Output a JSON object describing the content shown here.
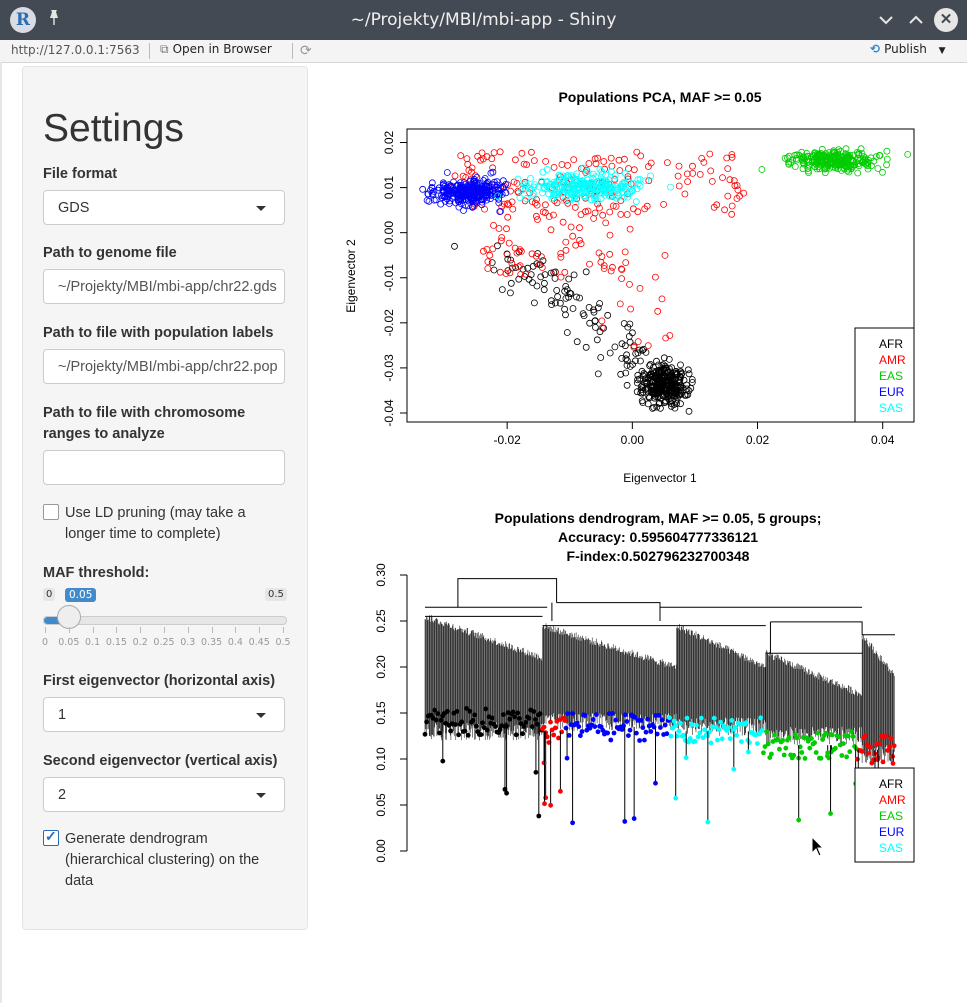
{
  "window": {
    "title": "~/Projekty/MBI/mbi-app - Shiny",
    "logo_letter": "R"
  },
  "addressbar": {
    "url": "http://127.0.0.1:7563",
    "open_in_browser": "Open in Browser",
    "publish": "Publish"
  },
  "sidebar": {
    "title": "Settings",
    "file_format": {
      "label": "File format",
      "value": "GDS"
    },
    "genome_path": {
      "label": "Path to genome file",
      "value": "~/Projekty/MBI/mbi-app/chr22.gds"
    },
    "labels_path": {
      "label": "Path to file with population labels",
      "value": "~/Projekty/MBI/mbi-app/chr22.pop"
    },
    "ranges_path": {
      "label": "Path to file with chromosome ranges to analyze",
      "value": ""
    },
    "ld_pruning": {
      "label": "Use LD pruning (may take a longer time to complete)",
      "checked": false
    },
    "maf": {
      "label": "MAF threshold:",
      "min": "0",
      "max": "0.5",
      "value": "0.05",
      "fraction": 0.1,
      "ticks": [
        "0",
        "0.05",
        "0.1",
        "0.15",
        "0.2",
        "0.25",
        "0.3",
        "0.35",
        "0.4",
        "0.45",
        "0.5"
      ]
    },
    "eig1": {
      "label": "First eigenvector (horizontal axis)",
      "value": "1"
    },
    "eig2": {
      "label": "Second eigenvector (vertical axis)",
      "value": "2"
    },
    "dendrogram": {
      "label": "Generate dendrogram (hierarchical clustering) on the data",
      "checked": true
    }
  },
  "chart_data": [
    {
      "type": "scatter",
      "title": "Populations PCA, MAF >= 0.05",
      "xlabel": "Eigenvector 1",
      "ylabel": "Eigenvector 2",
      "xlim": [
        -0.036,
        0.045
      ],
      "ylim": [
        -0.042,
        0.023
      ],
      "xticks": [
        "-0.02",
        "0.00",
        "0.02",
        "0.04"
      ],
      "yticks": [
        "0.02",
        "0.01",
        "0.00",
        "-0.01",
        "-0.02",
        "-0.03",
        "-0.04"
      ],
      "legend_position": "bottom-right",
      "series": [
        {
          "name": "AFR",
          "color": "#000000",
          "center": [
            0.005,
            -0.034
          ],
          "range_x": [
            -0.02,
            0.012
          ],
          "range_y": [
            -0.041,
            -0.005
          ]
        },
        {
          "name": "AMR",
          "color": "#ff0000",
          "center": [
            -0.008,
            0.006
          ],
          "range_x": [
            -0.03,
            0.022
          ],
          "range_y": [
            -0.013,
            0.019
          ]
        },
        {
          "name": "EAS",
          "color": "#00cc00",
          "center": [
            0.032,
            0.016
          ],
          "range_x": [
            0.022,
            0.042
          ],
          "range_y": [
            0.013,
            0.019
          ]
        },
        {
          "name": "EUR",
          "color": "#0000ff",
          "center": [
            -0.026,
            0.009
          ],
          "range_x": [
            -0.033,
            -0.016
          ],
          "range_y": [
            0.006,
            0.012
          ]
        },
        {
          "name": "SAS",
          "color": "#00ffff",
          "center": [
            -0.008,
            0.01
          ],
          "range_x": [
            -0.018,
            0.01
          ],
          "range_y": [
            0.007,
            0.015
          ]
        }
      ]
    },
    {
      "type": "dendrogram",
      "title": "Populations dendrogram, MAF >= 0.05, 5 groups;",
      "subtitle1": "Accuracy: 0.595604777336121",
      "subtitle2": "F-index:0.502796232700348",
      "ylim": [
        0,
        0.3
      ],
      "yticks": [
        "0.00",
        "0.05",
        "0.10",
        "0.15",
        "0.20",
        "0.25",
        "0.30"
      ],
      "legend_position": "bottom-right",
      "groups": [
        {
          "name": "AFR",
          "color": "#000000"
        },
        {
          "name": "AMR",
          "color": "#ff0000"
        },
        {
          "name": "EAS",
          "color": "#00cc00"
        },
        {
          "name": "EUR",
          "color": "#0000ff"
        },
        {
          "name": "SAS",
          "color": "#00ffff"
        }
      ],
      "leaf_order": [
        {
          "group": "AFR",
          "from": 0.0,
          "to": 0.25,
          "h": 0.14
        },
        {
          "group": "AMR",
          "from": 0.25,
          "to": 0.3,
          "h": 0.13
        },
        {
          "group": "EUR",
          "from": 0.3,
          "to": 0.52,
          "h": 0.135
        },
        {
          "group": "SAS",
          "from": 0.52,
          "to": 0.72,
          "h": 0.13
        },
        {
          "group": "EAS",
          "from": 0.72,
          "to": 0.92,
          "h": 0.115
        },
        {
          "group": "AMR",
          "from": 0.92,
          "to": 1.0,
          "h": 0.11
        }
      ]
    }
  ],
  "colors": {
    "accent": "#428bca",
    "titlebar": "#444a53"
  }
}
